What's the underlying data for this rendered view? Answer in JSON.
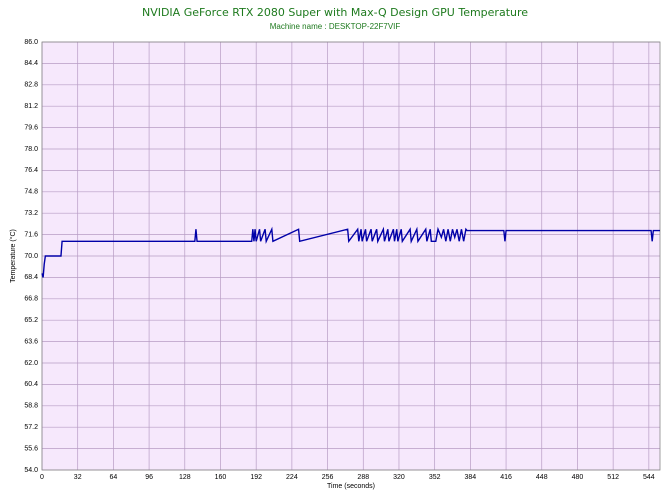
{
  "chart_data": {
    "type": "line",
    "title": "NVIDIA GeForce RTX 2080 Super with Max-Q Design GPU Temperature",
    "subtitle": "Machine name : DESKTOP-22F7VIF",
    "x_label": "Time (seconds)",
    "y_label": "Temperature (°C)",
    "x": [
      0,
      1,
      2,
      3,
      17,
      18,
      137,
      138,
      139,
      188,
      189,
      190,
      191,
      192,
      195,
      196,
      200,
      201,
      206,
      207,
      230,
      231,
      274,
      275,
      283,
      284,
      286,
      287,
      290,
      291,
      295,
      296,
      300,
      301,
      306,
      307,
      310,
      311,
      315,
      316,
      318,
      319,
      322,
      323,
      330,
      331,
      336,
      337,
      344,
      345,
      348,
      349,
      353,
      355,
      358,
      360,
      362,
      364,
      366,
      368,
      370,
      372,
      374,
      376,
      378,
      380,
      381,
      414,
      415,
      416,
      546,
      547,
      548,
      554
    ],
    "series": [
      {
        "name": "Temperature",
        "color": "#0000a8",
        "values": [
          68.7,
          68.4,
          69.4,
          70.0,
          70.0,
          71.1,
          71.1,
          72.0,
          71.1,
          71.1,
          72.0,
          71.1,
          72.0,
          71.1,
          72.0,
          71.1,
          72.0,
          71.1,
          72.0,
          71.1,
          72.0,
          71.1,
          72.0,
          71.1,
          72.0,
          71.1,
          72.0,
          71.1,
          72.0,
          71.1,
          72.0,
          71.1,
          72.0,
          71.1,
          72.0,
          71.1,
          72.0,
          71.1,
          72.0,
          71.1,
          72.0,
          71.1,
          72.0,
          71.1,
          72.0,
          71.1,
          72.0,
          71.1,
          72.0,
          71.1,
          72.0,
          71.1,
          71.1,
          72.0,
          71.4,
          72.0,
          71.1,
          72.0,
          71.1,
          72.0,
          71.4,
          72.0,
          71.1,
          72.0,
          71.1,
          72.0,
          71.9,
          71.9,
          71.1,
          71.9,
          71.9,
          71.1,
          71.9,
          71.9
        ]
      }
    ],
    "xlim": [
      0,
      554
    ],
    "ylim": [
      54,
      86
    ],
    "xticks": [
      0,
      32,
      64,
      96,
      128,
      160,
      192,
      224,
      256,
      288,
      320,
      352,
      384,
      416,
      448,
      480,
      512,
      544
    ],
    "yticks": [
      {
        "value": 86,
        "label": "86.0"
      },
      84.4,
      82.8,
      81.2,
      79.6,
      {
        "value": 78,
        "label": "78.0"
      },
      76.4,
      74.8,
      73.2,
      71.6,
      {
        "value": 70,
        "label": "70.0"
      },
      68.4,
      66.8,
      65.2,
      63.6,
      {
        "value": 62,
        "label": "62.0"
      },
      60.4,
      58.8,
      57.2,
      55.6,
      {
        "value": 54,
        "label": "54.0"
      }
    ],
    "grid": true,
    "background": "#f6e8fc"
  }
}
